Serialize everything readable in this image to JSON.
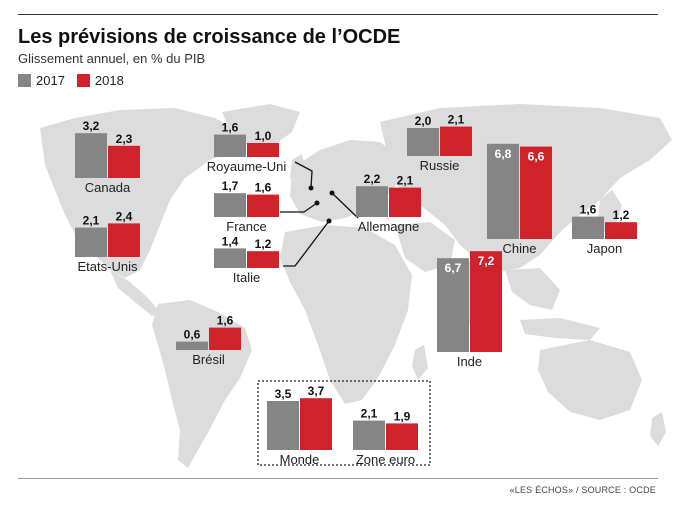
{
  "header": {
    "title": "Les prévisions de croissance de l’OCDE",
    "subtitle": "Glissement annuel, en % du PIB"
  },
  "legend": {
    "items": [
      {
        "label": "2017",
        "color": "#858585"
      },
      {
        "label": "2018",
        "color": "#d0222a"
      }
    ]
  },
  "source": "«LES ÉCHOS» / SOURCE : OCDE",
  "chart_data": {
    "type": "bar",
    "series_names": [
      "2017",
      "2018"
    ],
    "colors": {
      "2017": "#858585",
      "2018": "#d0222a"
    },
    "countries": [
      {
        "name": "Canada",
        "v2017": 3.2,
        "v2018": 2.3,
        "l2017": "3,2",
        "l2018": "2,3"
      },
      {
        "name": "Etats-Unis",
        "v2017": 2.1,
        "v2018": 2.4,
        "l2017": "2,1",
        "l2018": "2,4"
      },
      {
        "name": "Brésil",
        "v2017": 0.6,
        "v2018": 1.6,
        "l2017": "0,6",
        "l2018": "1,6"
      },
      {
        "name": "Royaume-Uni",
        "v2017": 1.6,
        "v2018": 1.0,
        "l2017": "1,6",
        "l2018": "1,0"
      },
      {
        "name": "France",
        "v2017": 1.7,
        "v2018": 1.6,
        "l2017": "1,7",
        "l2018": "1,6"
      },
      {
        "name": "Italie",
        "v2017": 1.4,
        "v2018": 1.2,
        "l2017": "1,4",
        "l2018": "1,2"
      },
      {
        "name": "Allemagne",
        "v2017": 2.2,
        "v2018": 2.1,
        "l2017": "2,2",
        "l2018": "2,1"
      },
      {
        "name": "Russie",
        "v2017": 2.0,
        "v2018": 2.1,
        "l2017": "2,0",
        "l2018": "2,1"
      },
      {
        "name": "Chine",
        "v2017": 6.8,
        "v2018": 6.6,
        "l2017": "6,8",
        "l2018": "6,6"
      },
      {
        "name": "Japon",
        "v2017": 1.6,
        "v2018": 1.2,
        "l2017": "1,6",
        "l2018": "1,2"
      },
      {
        "name": "Inde",
        "v2017": 6.7,
        "v2018": 7.2,
        "l2017": "6,7",
        "l2018": "7,2"
      },
      {
        "name": "Monde",
        "v2017": 3.5,
        "v2018": 3.7,
        "l2017": "3,5",
        "l2018": "3,7"
      },
      {
        "name": "Zone euro",
        "v2017": 2.1,
        "v2018": 1.9,
        "l2017": "2,1",
        "l2018": "1,9"
      }
    ]
  }
}
